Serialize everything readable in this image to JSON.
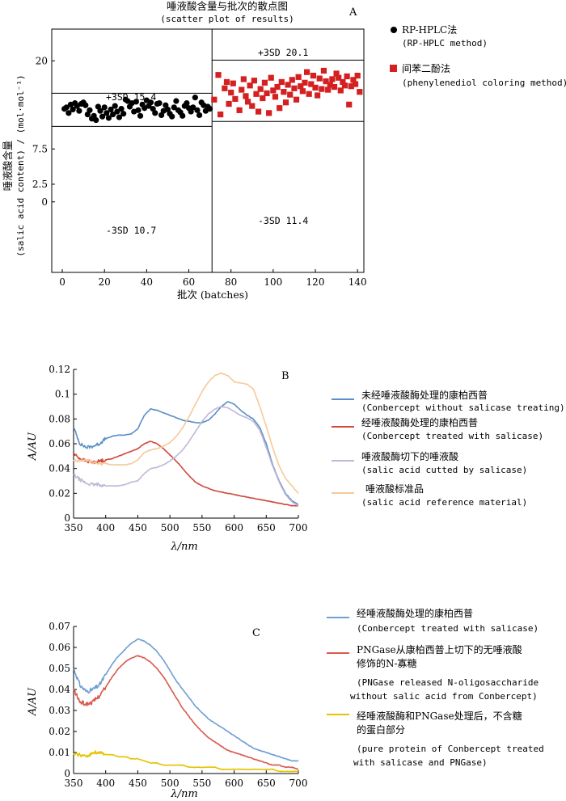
{
  "charts": {
    "A": {
      "panel_label": "A",
      "title": "唾液酸含量与批次的散点图",
      "subtitle": "(scatter plot of results)",
      "ylabel_cn": "唾液酸含量",
      "ylabel_en": "(salic acid content) / (mol·mol⁻¹)",
      "xlabel": "批次 (batches)",
      "legend": [
        {
          "name": "RP-HPLC法",
          "name_en": "(RP-HPLC method)",
          "color": "#000000"
        },
        {
          "name": "间苯二酚法",
          "name_en": "(phenylenediol coloring method)",
          "color": "#d42020"
        }
      ],
      "limits": [
        {
          "label": "+3SD 15.4",
          "side": "left"
        },
        {
          "label": "-3SD 10.7",
          "side": "left"
        },
        {
          "label": "+3SD 20.1",
          "side": "right"
        },
        {
          "label": "-3SD 11.4",
          "side": "right"
        }
      ]
    },
    "B": {
      "panel_label": "B",
      "ylabel": "A/AU",
      "xlabel": "λ/nm",
      "legend": [
        {
          "name": "未经唾液酸酶处理的康柏西普",
          "name_en": "(Conbercept without salicase treating)",
          "color": "#5b8fc7"
        },
        {
          "name": "经唾液酸酶处理的康柏西普",
          "name_en": "(Conbercept treated with salicase)",
          "color": "#cf4b3f"
        },
        {
          "name": "唾液酸酶切下的唾液酸",
          "name_en": "(salic acid cutted by salicase)",
          "color": "#c0b8d6"
        },
        {
          "name": "唾液酸标准品",
          "name_en": "(salic acid reference material)",
          "color": "#f6c99a"
        }
      ]
    },
    "C": {
      "panel_label": "C",
      "ylabel": "A/AU",
      "xlabel": "λ/nm",
      "legend": [
        {
          "name": "经唾液酸酶处理的康柏西普",
          "name_en": "(Conbercept treated with salicase)",
          "color": "#6f9fd2"
        },
        {
          "name": "PNGase从康柏西普上切下的无唾液酸",
          "name2": "修饰的N-寡糖",
          "name_en": "(PNGase released N-oligosaccharide",
          "name_en2": "without salic acid from Conbercept)",
          "color": "#d85a4d"
        },
        {
          "name": "经唾液酸酶和PNGase处理后，不含糖",
          "name2": "的蛋白部分",
          "name_en": "(pure protein of Conbercept treated",
          "name_en2": "with salicase and PNGase)",
          "color": "#e6c200"
        }
      ]
    }
  },
  "chart_data": [
    {
      "id": "A",
      "type": "scatter",
      "title": "唾液酸含量与批次的散点图",
      "xlabel": "批次 (batches)",
      "ylabel": "唾液酸含量 (salic acid content) / (mol·mol⁻¹)",
      "xlim": [
        -5,
        143
      ],
      "ylim": [
        -10,
        24.5
      ],
      "xticks": [
        0,
        20,
        40,
        60,
        80,
        100,
        120,
        140
      ],
      "yticks": [
        0,
        2.5,
        7.5,
        20
      ],
      "ytick_labels": [
        "0",
        "2.5",
        "7.5",
        "20"
      ],
      "divider_x": 71,
      "limit_lines": [
        {
          "from": -5,
          "to": 71,
          "y": 15.4,
          "label": "+3SD 15.4"
        },
        {
          "from": -5,
          "to": 71,
          "y": 10.7,
          "label": "-3SD 10.7"
        },
        {
          "from": 71,
          "to": 143,
          "y": 20.1,
          "label": "+3SD 20.1"
        },
        {
          "from": 71,
          "to": 143,
          "y": 11.4,
          "label": "-3SD 11.4"
        }
      ],
      "series": [
        {
          "name": "RP-HPLC法",
          "marker": "circle",
          "color": "#000000",
          "x": [
            1,
            2,
            3,
            4,
            5,
            6,
            7,
            8,
            9,
            10,
            11,
            12,
            13,
            14,
            15,
            16,
            17,
            18,
            19,
            20,
            21,
            22,
            23,
            24,
            25,
            26,
            27,
            28,
            29,
            30,
            31,
            32,
            33,
            34,
            35,
            36,
            37,
            38,
            39,
            40,
            41,
            42,
            43,
            44,
            45,
            46,
            47,
            48,
            49,
            50,
            51,
            52,
            53,
            54,
            55,
            56,
            57,
            58,
            59,
            60,
            61,
            62,
            63,
            64,
            65,
            66,
            67,
            68,
            69,
            70
          ],
          "y": [
            13.2,
            13.4,
            12.6,
            13.8,
            13.1,
            14.0,
            13.6,
            12.9,
            13.9,
            14.1,
            13.7,
            12.4,
            13.0,
            11.8,
            12.2,
            11.6,
            13.5,
            12.9,
            12.1,
            13.4,
            12.6,
            11.9,
            13.1,
            12.4,
            13.6,
            12.8,
            12.0,
            13.2,
            12.5,
            14.5,
            14.3,
            13.5,
            14.0,
            12.8,
            14.2,
            13.0,
            12.2,
            13.8,
            13.3,
            14.4,
            13.6,
            14.1,
            13.2,
            12.6,
            13.9,
            14.0,
            12.3,
            12.9,
            13.7,
            13.1,
            12.5,
            12.1,
            13.4,
            14.3,
            13.0,
            12.7,
            12.2,
            13.6,
            14.0,
            13.3,
            12.8,
            13.4,
            14.8,
            13.0,
            12.3,
            14.1,
            13.7,
            12.9,
            13.5,
            13.2
          ]
        },
        {
          "name": "间苯二酚法",
          "marker": "square",
          "color": "#d42020",
          "x": [
            72,
            74,
            75,
            77,
            78,
            79,
            80,
            81,
            82,
            84,
            85,
            86,
            87,
            88,
            89,
            90,
            91,
            92,
            93,
            94,
            95,
            96,
            97,
            98,
            99,
            100,
            101,
            102,
            103,
            104,
            105,
            106,
            107,
            108,
            109,
            110,
            111,
            112,
            113,
            114,
            115,
            116,
            117,
            118,
            119,
            120,
            121,
            122,
            123,
            124,
            125,
            126,
            127,
            128,
            129,
            130,
            131,
            132,
            133,
            134,
            135,
            136,
            137,
            138,
            139,
            140,
            141
          ],
          "y": [
            14.5,
            18.0,
            12.4,
            16.1,
            17.0,
            13.9,
            15.5,
            16.8,
            14.6,
            13.0,
            15.9,
            17.4,
            15.0,
            14.2,
            16.5,
            13.6,
            17.2,
            15.3,
            12.8,
            16.0,
            14.7,
            16.9,
            15.4,
            12.6,
            17.6,
            15.8,
            14.9,
            16.3,
            13.3,
            17.0,
            15.6,
            14.1,
            16.6,
            15.2,
            17.3,
            16.1,
            14.5,
            17.7,
            16.4,
            15.7,
            16.9,
            18.4,
            15.3,
            16.7,
            17.9,
            16.2,
            15.1,
            17.5,
            16.0,
            18.6,
            17.1,
            15.9,
            16.6,
            17.4,
            16.3,
            18.2,
            17.6,
            15.8,
            17.0,
            16.5,
            17.8,
            13.8,
            16.4,
            17.3,
            16.7,
            17.9,
            15.6
          ]
        }
      ]
    },
    {
      "id": "B",
      "type": "line",
      "xlabel": "λ/nm",
      "ylabel": "A/AU",
      "xlim": [
        350,
        700
      ],
      "ylim": [
        0,
        0.12
      ],
      "xticks": [
        350,
        400,
        450,
        500,
        550,
        600,
        650,
        700
      ],
      "yticks": [
        0,
        0.02,
        0.04,
        0.06,
        0.08,
        0.1,
        0.12
      ],
      "ytick_labels": [
        "0",
        "0.02",
        "0.04",
        "0.06",
        "0.08",
        "0.1",
        "0.12"
      ],
      "series": [
        {
          "name": "未经唾液酸酶处理的康柏西普",
          "color": "#5b8fc7",
          "noise": 0.0012,
          "x": [
            350,
            360,
            370,
            380,
            390,
            400,
            410,
            420,
            430,
            440,
            450,
            460,
            470,
            480,
            490,
            500,
            510,
            520,
            530,
            540,
            550,
            560,
            570,
            580,
            590,
            600,
            610,
            620,
            630,
            640,
            650,
            660,
            670,
            680,
            690,
            700
          ],
          "y": [
            0.073,
            0.06,
            0.057,
            0.058,
            0.06,
            0.064,
            0.066,
            0.067,
            0.067,
            0.068,
            0.072,
            0.083,
            0.088,
            0.087,
            0.085,
            0.083,
            0.081,
            0.079,
            0.078,
            0.077,
            0.077,
            0.079,
            0.084,
            0.09,
            0.094,
            0.092,
            0.087,
            0.083,
            0.08,
            0.073,
            0.06,
            0.043,
            0.03,
            0.02,
            0.014,
            0.011
          ]
        },
        {
          "name": "经唾液酸酶处理的康柏西普",
          "color": "#cf4b3f",
          "noise": 0.0012,
          "x": [
            350,
            360,
            370,
            380,
            390,
            400,
            410,
            420,
            430,
            440,
            450,
            460,
            470,
            480,
            490,
            500,
            510,
            520,
            530,
            540,
            550,
            560,
            570,
            580,
            590,
            600,
            610,
            620,
            630,
            640,
            650,
            660,
            670,
            680,
            690,
            700
          ],
          "y": [
            0.052,
            0.048,
            0.046,
            0.045,
            0.046,
            0.047,
            0.048,
            0.05,
            0.052,
            0.054,
            0.056,
            0.06,
            0.062,
            0.06,
            0.056,
            0.051,
            0.046,
            0.04,
            0.034,
            0.029,
            0.026,
            0.024,
            0.022,
            0.021,
            0.02,
            0.019,
            0.018,
            0.017,
            0.016,
            0.015,
            0.014,
            0.013,
            0.012,
            0.011,
            0.01,
            0.01
          ]
        },
        {
          "name": "唾液酸酶切下的唾液酸",
          "color": "#c0b8d6",
          "noise": 0.0012,
          "x": [
            350,
            360,
            370,
            380,
            390,
            400,
            410,
            420,
            430,
            440,
            450,
            460,
            470,
            480,
            490,
            500,
            510,
            520,
            530,
            540,
            550,
            560,
            570,
            580,
            590,
            600,
            610,
            620,
            630,
            640,
            650,
            660,
            670,
            680,
            690,
            700
          ],
          "y": [
            0.035,
            0.031,
            0.028,
            0.027,
            0.027,
            0.026,
            0.026,
            0.026,
            0.027,
            0.029,
            0.03,
            0.036,
            0.04,
            0.041,
            0.043,
            0.046,
            0.05,
            0.055,
            0.062,
            0.07,
            0.078,
            0.084,
            0.088,
            0.09,
            0.089,
            0.086,
            0.083,
            0.081,
            0.078,
            0.071,
            0.057,
            0.042,
            0.029,
            0.019,
            0.013,
            0.01
          ]
        },
        {
          "name": "唾液酸标准品",
          "color": "#f6c99a",
          "noise": 0.0012,
          "x": [
            350,
            360,
            370,
            380,
            390,
            400,
            410,
            420,
            430,
            440,
            450,
            460,
            470,
            480,
            490,
            500,
            510,
            520,
            530,
            540,
            550,
            560,
            570,
            580,
            590,
            600,
            610,
            620,
            630,
            640,
            650,
            660,
            670,
            680,
            690,
            700
          ],
          "y": [
            0.046,
            0.046,
            0.047,
            0.045,
            0.044,
            0.044,
            0.043,
            0.043,
            0.043,
            0.044,
            0.047,
            0.053,
            0.055,
            0.056,
            0.058,
            0.061,
            0.066,
            0.073,
            0.082,
            0.092,
            0.102,
            0.11,
            0.115,
            0.117,
            0.115,
            0.11,
            0.109,
            0.108,
            0.104,
            0.09,
            0.074,
            0.057,
            0.042,
            0.032,
            0.026,
            0.02
          ]
        }
      ]
    },
    {
      "id": "C",
      "type": "line",
      "xlabel": "λ/nm",
      "ylabel": "A/AU",
      "xlim": [
        350,
        700
      ],
      "ylim": [
        0,
        0.07
      ],
      "xticks": [
        350,
        400,
        450,
        500,
        550,
        600,
        650,
        700
      ],
      "yticks": [
        0,
        0.01,
        0.02,
        0.03,
        0.04,
        0.05,
        0.06,
        0.07
      ],
      "ytick_labels": [
        "0",
        "0.01",
        "0.02",
        "0.03",
        "0.04",
        "0.05",
        "0.06",
        "0.07"
      ],
      "series": [
        {
          "name": "经唾液酸酶处理的康柏西普",
          "color": "#6f9fd2",
          "noise": 0.0009,
          "x": [
            350,
            360,
            370,
            380,
            390,
            400,
            410,
            420,
            430,
            440,
            450,
            460,
            470,
            480,
            490,
            500,
            510,
            520,
            530,
            540,
            550,
            560,
            570,
            580,
            590,
            600,
            610,
            620,
            630,
            640,
            650,
            660,
            670,
            680,
            690,
            700
          ],
          "y": [
            0.05,
            0.042,
            0.039,
            0.04,
            0.042,
            0.047,
            0.052,
            0.056,
            0.059,
            0.062,
            0.064,
            0.063,
            0.061,
            0.058,
            0.054,
            0.049,
            0.044,
            0.04,
            0.036,
            0.032,
            0.029,
            0.026,
            0.024,
            0.022,
            0.02,
            0.018,
            0.016,
            0.014,
            0.012,
            0.011,
            0.01,
            0.009,
            0.008,
            0.007,
            0.006,
            0.006
          ]
        },
        {
          "name": "PNGase从康柏西普上切下的无唾液酸修饰的N-寡糖",
          "color": "#d85a4d",
          "noise": 0.0009,
          "x": [
            350,
            360,
            370,
            380,
            390,
            400,
            410,
            420,
            430,
            440,
            450,
            460,
            470,
            480,
            490,
            500,
            510,
            520,
            530,
            540,
            550,
            560,
            570,
            580,
            590,
            600,
            610,
            620,
            630,
            640,
            650,
            660,
            670,
            680,
            690,
            700
          ],
          "y": [
            0.04,
            0.034,
            0.033,
            0.034,
            0.037,
            0.041,
            0.046,
            0.05,
            0.053,
            0.055,
            0.056,
            0.055,
            0.053,
            0.05,
            0.046,
            0.041,
            0.036,
            0.031,
            0.027,
            0.023,
            0.02,
            0.017,
            0.015,
            0.013,
            0.011,
            0.01,
            0.009,
            0.008,
            0.007,
            0.006,
            0.005,
            0.004,
            0.004,
            0.003,
            0.003,
            0.002
          ]
        },
        {
          "name": "经唾液酸酶和PNGase处理后，不含糖的蛋白部分",
          "color": "#e6c200",
          "noise": 0.0007,
          "x": [
            350,
            360,
            370,
            380,
            390,
            400,
            410,
            420,
            430,
            440,
            450,
            460,
            470,
            480,
            490,
            500,
            510,
            520,
            530,
            540,
            550,
            560,
            570,
            580,
            590,
            600,
            610,
            620,
            630,
            640,
            650,
            660,
            670,
            680,
            690,
            700
          ],
          "y": [
            0.009,
            0.009,
            0.008,
            0.01,
            0.01,
            0.009,
            0.009,
            0.008,
            0.008,
            0.007,
            0.007,
            0.006,
            0.005,
            0.005,
            0.004,
            0.004,
            0.004,
            0.004,
            0.003,
            0.003,
            0.003,
            0.003,
            0.003,
            0.002,
            0.002,
            0.002,
            0.002,
            0.002,
            0.002,
            0.002,
            0.002,
            0.002,
            0.001,
            0.001,
            0.001,
            0.001
          ]
        }
      ]
    }
  ]
}
